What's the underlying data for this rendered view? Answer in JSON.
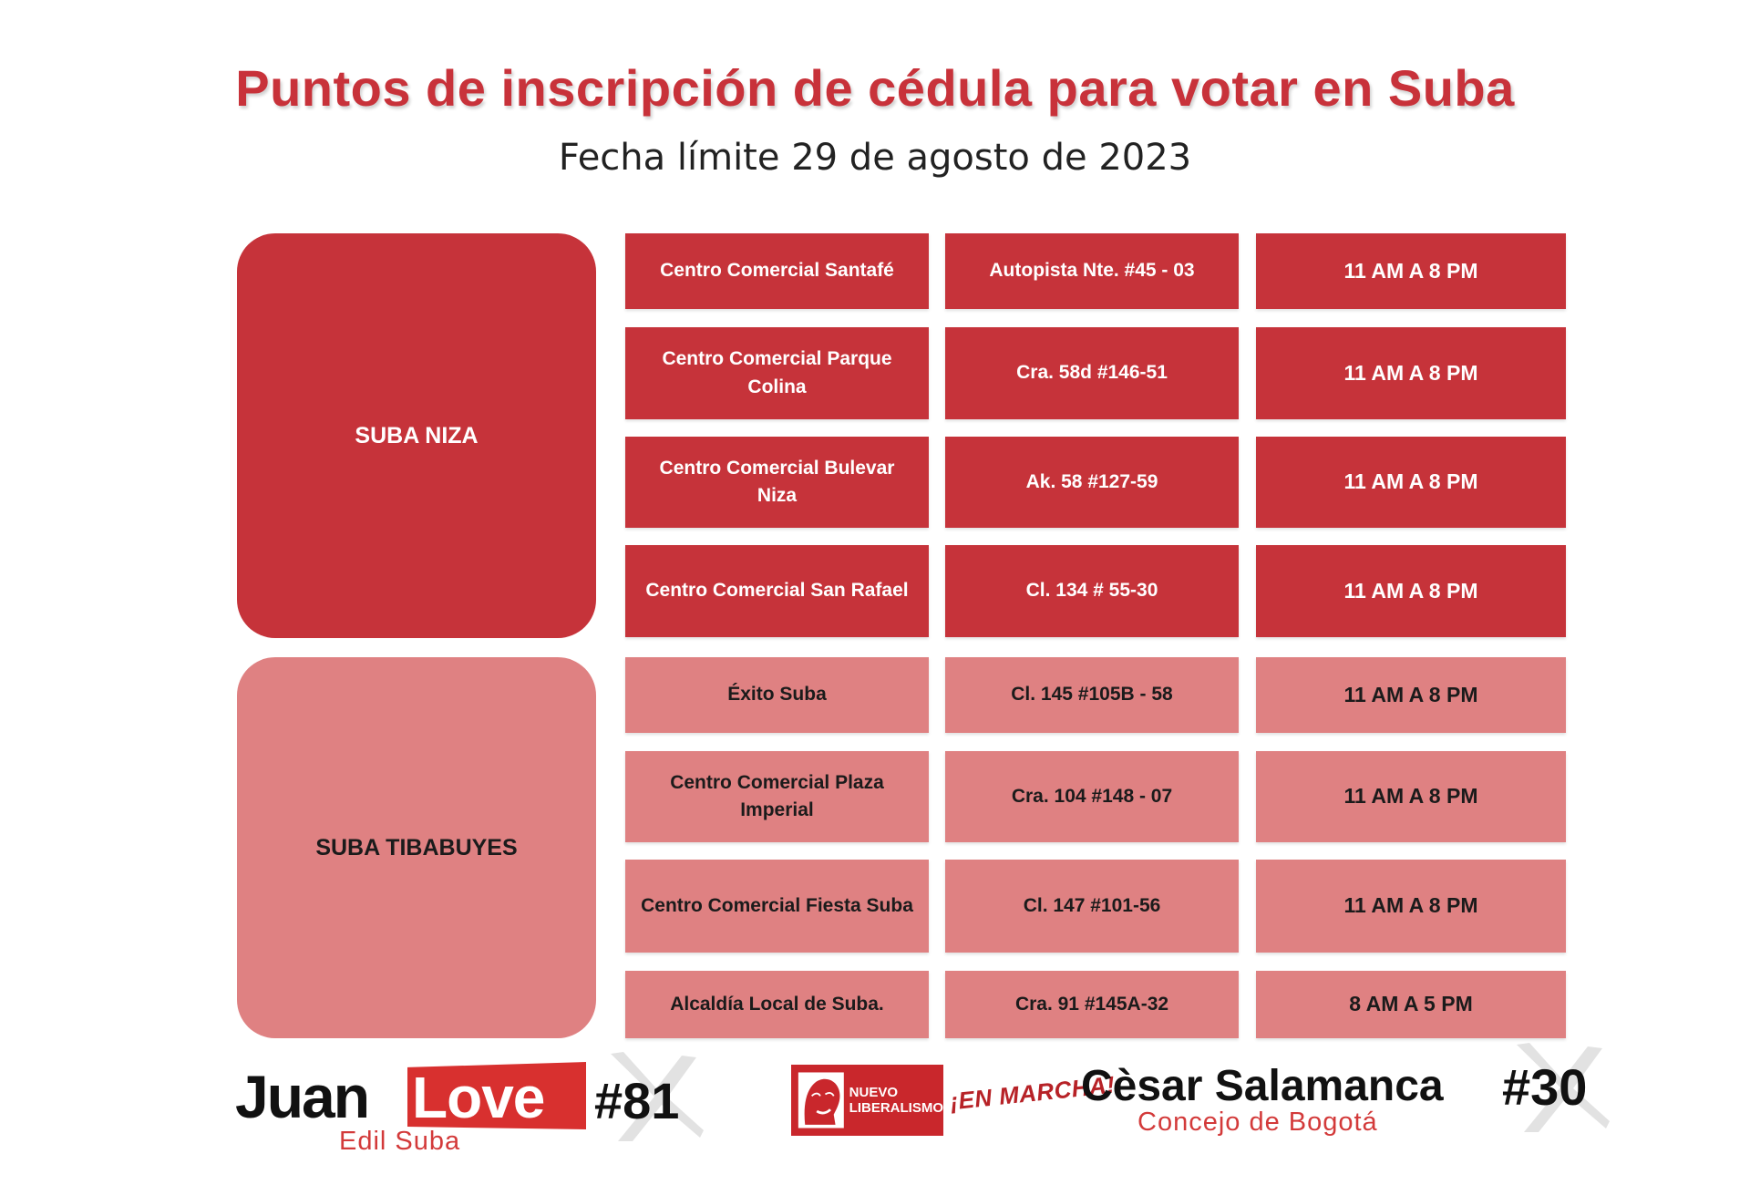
{
  "header": {
    "title": "Puntos de inscripción de cédula para votar en Suba",
    "subtitle": "Fecha límite  29 de agosto de 2023"
  },
  "colors": {
    "primary_red": "#c6333a",
    "light_red": "#df8182",
    "title_red": "#c8323a"
  },
  "zones": [
    {
      "name": "SUBA NIZA",
      "style": "dark",
      "points": [
        {
          "name": "Centro Comercial Santafé",
          "address": "Autopista Nte. #45 - 03",
          "hours": "11 AM A 8 PM"
        },
        {
          "name": "Centro Comercial Parque Colina",
          "address": "Cra. 58d #146-51",
          "hours": "11 AM A 8 PM"
        },
        {
          "name": "Centro Comercial Bulevar Niza",
          "address": "Ak. 58 #127-59",
          "hours": "11 AM A 8 PM"
        },
        {
          "name": "Centro Comercial San Rafael",
          "address": "Cl. 134 # 55-30",
          "hours": "11 AM A 8 PM"
        }
      ]
    },
    {
      "name": "SUBA TIBABUYES",
      "style": "light",
      "points": [
        {
          "name": "Éxito Suba",
          "address": "Cl. 145 #105B - 58",
          "hours": "11 AM A 8 PM"
        },
        {
          "name": "Centro Comercial Plaza Imperial",
          "address": "Cra. 104 #148 - 07",
          "hours": "11 AM A 8 PM"
        },
        {
          "name": "Centro Comercial Fiesta Suba",
          "address": "Cl. 147 #101-56",
          "hours": "11 AM A 8 PM"
        },
        {
          "name": "Alcaldía Local de Suba.",
          "address": "Cra. 91 #145A-32",
          "hours": "8 AM A 5 PM"
        }
      ]
    }
  ],
  "footer": {
    "candidate1": {
      "first": "Juan",
      "last": "Love",
      "number": "#81",
      "role": "Edil Suba"
    },
    "party": {
      "line1": "NUEVO",
      "line2": "LIBERALISMO",
      "slogan": "¡EN MARCHA!"
    },
    "candidate2": {
      "name": "Cèsar Salamanca",
      "number": "#30",
      "role": "Concejo de Bogotá"
    }
  }
}
